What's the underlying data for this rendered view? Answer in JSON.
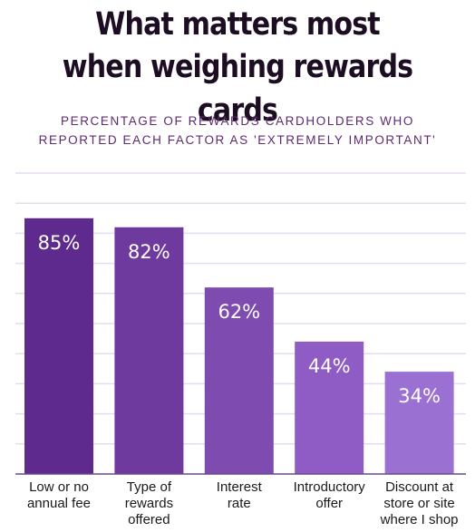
{
  "header": {
    "title_line1": "What matters most",
    "title_line2": "when weighing rewards cards",
    "subtitle_line1": "PERCENTAGE OF REWARDS CARDHOLDERS WHO",
    "subtitle_line2": "REPORTED EACH FACTOR AS 'EXTREMELY IMPORTANT'"
  },
  "colors": {
    "bars": [
      "#5e2a8e",
      "#6f3a9e",
      "#7e4bb0",
      "#8e5cc4",
      "#9b70d3"
    ],
    "gridline": "#e6dcef",
    "axis": "#6a4a8a"
  },
  "chart_data": {
    "type": "bar",
    "title": "What matters most when weighing rewards cards",
    "subtitle": "PERCENTAGE OF REWARDS CARDHOLDERS WHO REPORTED EACH FACTOR AS 'EXTREMELY IMPORTANT'",
    "categories": [
      [
        "Low or no",
        "annual fee"
      ],
      [
        "Type of",
        "rewards",
        "offered"
      ],
      [
        "Interest",
        "rate"
      ],
      [
        "Introductory",
        "offer"
      ],
      [
        "Discount at",
        "store or site",
        "where I shop"
      ]
    ],
    "values": [
      85,
      82,
      62,
      44,
      34
    ],
    "value_labels": [
      "85%",
      "82%",
      "62%",
      "44%",
      "34%"
    ],
    "xlabel": "",
    "ylabel": "",
    "ylim": [
      0,
      100
    ],
    "grid": true
  }
}
